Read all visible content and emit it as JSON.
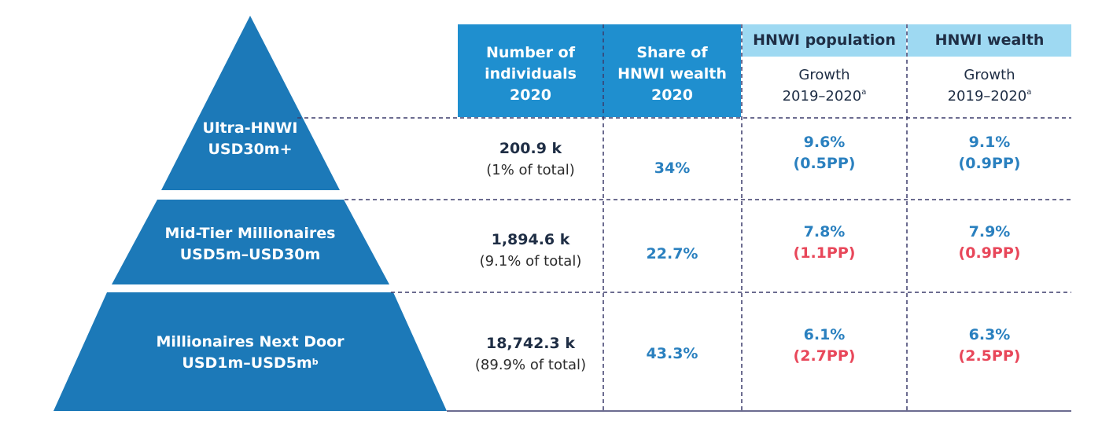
{
  "pyramid": {
    "tiers": [
      {
        "name": "Ultra-HNWI",
        "range": "USD30m+",
        "footnote": ""
      },
      {
        "name": "Mid-Tier Millionaires",
        "range": "USD5m–USD30m",
        "footnote": ""
      },
      {
        "name": "Millionaires Next Door",
        "range": "USD1m–USD5m",
        "footnote": "b"
      }
    ]
  },
  "table": {
    "col1_header": [
      "Number of",
      "individuals",
      "2020"
    ],
    "col2_header": [
      "Share of",
      "HNWI wealth",
      "2020"
    ],
    "col3_group": "HNWI population",
    "col4_group": "HNWI wealth",
    "growth_label": "Growth",
    "growth_period": "2019–2020",
    "growth_footnote": "a",
    "rows": [
      {
        "individuals": "200.9 k",
        "share_of_total": "(1% of total)",
        "wealth_share": "34%",
        "pop_growth": "9.6%",
        "pop_pp": "(0.5PP)",
        "pop_pp_color": "#2a80bf",
        "wealth_growth": "9.1%",
        "wealth_pp": "(0.9PP)",
        "wealth_pp_color": "#2a80bf"
      },
      {
        "individuals": "1,894.6 k",
        "share_of_total": "(9.1% of total)",
        "wealth_share": "22.7%",
        "pop_growth": "7.8%",
        "pop_pp": "(1.1PP)",
        "pop_pp_color": "#e8475a",
        "wealth_growth": "7.9%",
        "wealth_pp": "(0.9PP)",
        "wealth_pp_color": "#e8475a"
      },
      {
        "individuals": "18,742.3 k",
        "share_of_total": "(89.9% of total)",
        "wealth_share": "43.3%",
        "pop_growth": "6.1%",
        "pop_pp": "(2.7PP)",
        "pop_pp_color": "#e8475a",
        "wealth_growth": "6.3%",
        "wealth_pp": "(2.5PP)",
        "wealth_pp_color": "#e8475a"
      }
    ]
  },
  "colors": {
    "pyramid_blue": "#1c79b8",
    "header_blue": "#1f8fcf",
    "header_light": "#9ed9f2",
    "positive_blue": "#2a80bf",
    "negative_red": "#e8475a"
  }
}
